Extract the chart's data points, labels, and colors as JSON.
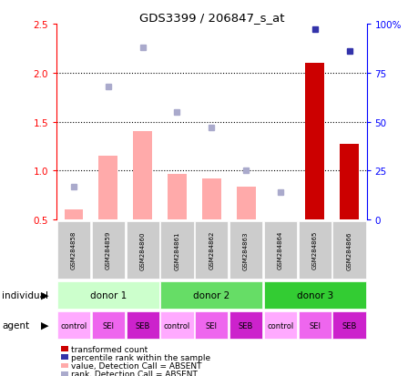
{
  "title": "GDS3399 / 206847_s_at",
  "samples": [
    "GSM284858",
    "GSM284859",
    "GSM284860",
    "GSM284861",
    "GSM284862",
    "GSM284863",
    "GSM284864",
    "GSM284865",
    "GSM284866"
  ],
  "bar_values": [
    0.6,
    1.15,
    1.4,
    0.97,
    0.92,
    0.84,
    null,
    2.1,
    1.27
  ],
  "bar_absent": [
    true,
    true,
    true,
    true,
    true,
    true,
    true,
    false,
    false
  ],
  "rank_values_pct": [
    17,
    68,
    88,
    55,
    47,
    25,
    14,
    97,
    86
  ],
  "rank_absent": [
    true,
    true,
    true,
    true,
    true,
    true,
    true,
    false,
    false
  ],
  "ylim_left": [
    0.5,
    2.5
  ],
  "ylim_right": [
    0,
    100
  ],
  "yticks_left": [
    0.5,
    1.0,
    1.5,
    2.0,
    2.5
  ],
  "yticks_right": [
    0,
    25,
    50,
    75,
    100
  ],
  "bar_absent_color": "#ffaaaa",
  "bar_present_color": "#cc0000",
  "rank_absent_color": "#aaaacc",
  "rank_present_color": "#3333aa",
  "donor_labels": [
    "donor 1",
    "donor 2",
    "donor 3"
  ],
  "donor_starts": [
    0,
    3,
    6
  ],
  "donor_ends": [
    3,
    6,
    9
  ],
  "donor_colors": [
    "#ccffcc",
    "#66dd66",
    "#33cc33"
  ],
  "agents": [
    "control",
    "SEI",
    "SEB",
    "control",
    "SEI",
    "SEB",
    "control",
    "SEI",
    "SEB"
  ],
  "agent_colors": [
    "#ffaaff",
    "#ee66ee",
    "#cc22cc",
    "#ffaaff",
    "#ee66ee",
    "#cc22cc",
    "#ffaaff",
    "#ee66ee",
    "#cc22cc"
  ],
  "legend": [
    {
      "color": "#cc0000",
      "label": "transformed count"
    },
    {
      "color": "#3333aa",
      "label": "percentile rank within the sample"
    },
    {
      "color": "#ffaaaa",
      "label": "value, Detection Call = ABSENT"
    },
    {
      "color": "#aaaacc",
      "label": "rank, Detection Call = ABSENT"
    }
  ]
}
